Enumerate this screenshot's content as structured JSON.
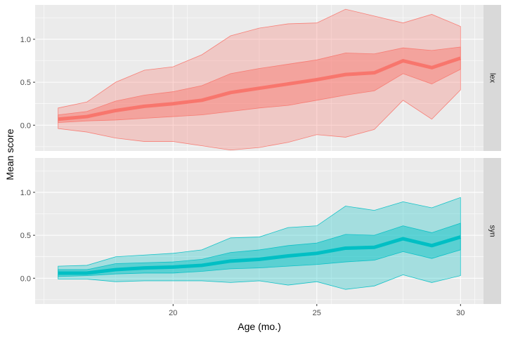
{
  "chart_data": {
    "type": "area",
    "xlabel": "Age (mo.)",
    "ylabel": "Mean score",
    "xlim": [
      15.2,
      30.8
    ],
    "ylim": [
      -0.3,
      1.4
    ],
    "x_ticks": [
      20,
      25,
      30
    ],
    "y_ticks": [
      0.0,
      0.5,
      1.0
    ],
    "x_tick_labels": [
      "20",
      "25",
      "30"
    ],
    "y_tick_labels": [
      "0.0",
      "0.5",
      "1.0"
    ],
    "grid": true,
    "panels": [
      {
        "label": "lex",
        "color": "#F8766D",
        "x": [
          16,
          17,
          18,
          19,
          20,
          21,
          22,
          23,
          24,
          25,
          26,
          27,
          28,
          29,
          30
        ],
        "mean": [
          0.07,
          0.1,
          0.17,
          0.22,
          0.25,
          0.29,
          0.38,
          0.43,
          0.48,
          0.53,
          0.59,
          0.61,
          0.75,
          0.67,
          0.78
        ],
        "inner_lower": [
          0.03,
          0.05,
          0.06,
          0.08,
          0.1,
          0.12,
          0.16,
          0.2,
          0.23,
          0.29,
          0.35,
          0.4,
          0.6,
          0.48,
          0.65
        ],
        "inner_upper": [
          0.12,
          0.16,
          0.28,
          0.35,
          0.39,
          0.46,
          0.6,
          0.66,
          0.71,
          0.76,
          0.84,
          0.83,
          0.9,
          0.87,
          0.91
        ],
        "outer_lower": [
          -0.04,
          -0.08,
          -0.15,
          -0.19,
          -0.19,
          -0.24,
          -0.29,
          -0.26,
          -0.2,
          -0.11,
          -0.14,
          -0.05,
          0.29,
          0.07,
          0.41
        ],
        "outer_upper": [
          0.2,
          0.27,
          0.5,
          0.64,
          0.68,
          0.82,
          1.04,
          1.13,
          1.18,
          1.19,
          1.35,
          1.27,
          1.19,
          1.29,
          1.15
        ]
      },
      {
        "label": "syn",
        "color": "#00BFC4",
        "x": [
          16,
          17,
          18,
          19,
          20,
          21,
          22,
          23,
          24,
          25,
          26,
          27,
          28,
          29,
          30
        ],
        "mean": [
          0.06,
          0.06,
          0.1,
          0.12,
          0.13,
          0.15,
          0.2,
          0.22,
          0.26,
          0.29,
          0.35,
          0.36,
          0.46,
          0.38,
          0.48
        ],
        "inner_lower": [
          0.02,
          0.03,
          0.05,
          0.06,
          0.06,
          0.08,
          0.11,
          0.12,
          0.14,
          0.16,
          0.19,
          0.21,
          0.31,
          0.23,
          0.33
        ],
        "inner_upper": [
          0.1,
          0.1,
          0.17,
          0.18,
          0.19,
          0.22,
          0.3,
          0.33,
          0.38,
          0.41,
          0.51,
          0.5,
          0.61,
          0.53,
          0.64
        ],
        "outer_lower": [
          -0.01,
          -0.01,
          -0.04,
          -0.03,
          -0.03,
          -0.03,
          -0.05,
          -0.03,
          -0.08,
          -0.04,
          -0.13,
          -0.09,
          0.04,
          -0.05,
          0.03
        ],
        "outer_upper": [
          0.14,
          0.15,
          0.25,
          0.27,
          0.29,
          0.33,
          0.47,
          0.48,
          0.59,
          0.61,
          0.84,
          0.79,
          0.89,
          0.82,
          0.94
        ]
      }
    ]
  }
}
